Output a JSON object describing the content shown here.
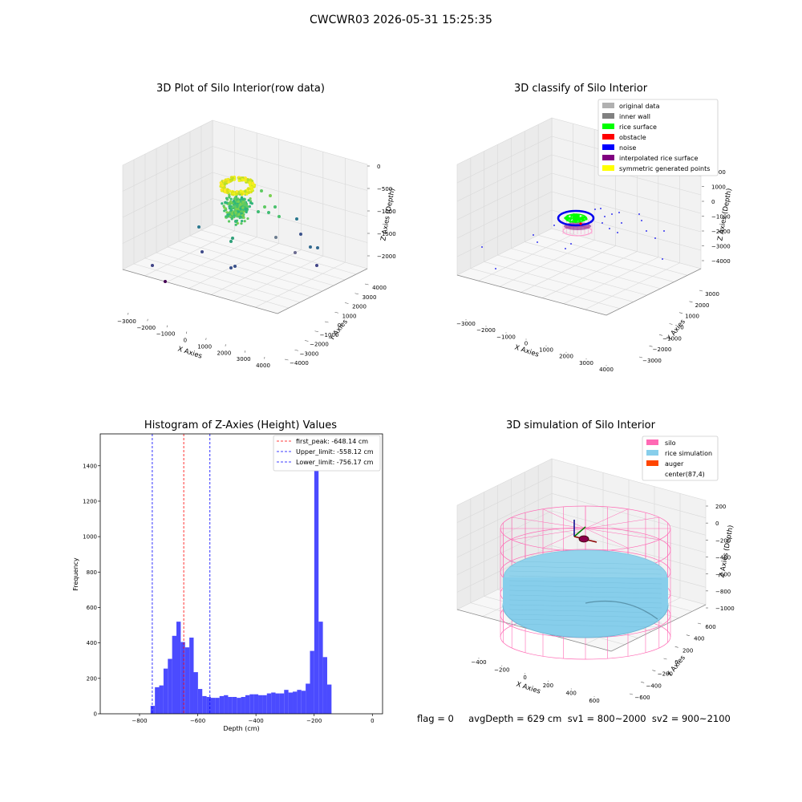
{
  "figure": {
    "suptitle": "CWCWR03 2026-05-31 15:25:35",
    "footer": "flag = 0     avgDepth = 629 cm  sv1 = 800~2000  sv2 = 900~2100"
  },
  "colors": {
    "grid": "#d8d8d8",
    "pane": "#f2f2f2",
    "hist_bar": "#4b4bff",
    "silo": "#ff69b4",
    "rice": "#87ceeb",
    "auger": "#ff4500",
    "noise": "#0000ee",
    "rice_surface": "#00ff00",
    "obstacle": "#ff0000",
    "purple": "#800080",
    "yellow": "#ffff00"
  },
  "chart_data": [
    {
      "type": "scatter",
      "title": "3D Plot of Silo Interior(row data)",
      "xlabel": "X Axies",
      "ylabel": "Y Axies",
      "zlabel": "Z Axies (Depth)",
      "x_ticks": [
        "−3000",
        "−2000",
        "−1000",
        "0",
        "1000",
        "2000",
        "3000",
        "4000"
      ],
      "y_ticks": [
        "−4000",
        "−3000",
        "−2000",
        "−1000",
        "0",
        "1000",
        "2000",
        "3000",
        "4000"
      ],
      "z_ticks": [
        "−2000",
        "−1500",
        "−1000",
        "−500",
        "0"
      ],
      "colormap": "viridis"
    },
    {
      "type": "scatter",
      "title": "3D classify of Silo Interior",
      "xlabel": "X Axies",
      "ylabel": "Y Axies",
      "zlabel": "Z Axies (Depth)",
      "x_ticks": [
        "−3000",
        "−2000",
        "−1000",
        "0",
        "1000",
        "2000",
        "3000",
        "4000"
      ],
      "y_ticks": [
        "−3000",
        "−2000",
        "−1000",
        "0",
        "1000",
        "2000",
        "3000"
      ],
      "z_ticks": [
        "−4000",
        "−3000",
        "−2000",
        "−1000",
        "0",
        "1000",
        "2000"
      ],
      "legend": [
        {
          "label": "original data",
          "color": "#b0b0b0"
        },
        {
          "label": "inner wall",
          "color": "#808080"
        },
        {
          "label": "rice surface",
          "color": "#00ff00"
        },
        {
          "label": "obstacle",
          "color": "#ff0000"
        },
        {
          "label": "noise",
          "color": "#0000ff"
        },
        {
          "label": "interpolated rice surface",
          "color": "#800080"
        },
        {
          "label": "symmetric generated points",
          "color": "#ffff00"
        }
      ]
    },
    {
      "type": "bar",
      "title": "Histogram of Z-Axies (Height) Values",
      "xlabel": "Depth (cm)",
      "ylabel": "Frequency",
      "xlim": [
        -935,
        35
      ],
      "ylim": [
        0,
        1580
      ],
      "x_ticks": [
        -800,
        -600,
        -400,
        -200,
        0
      ],
      "y_ticks": [
        0,
        200,
        400,
        600,
        800,
        1000,
        1200,
        1400
      ],
      "bin_start": -762,
      "bin_width": 14.8,
      "values": [
        45,
        150,
        160,
        255,
        310,
        440,
        520,
        405,
        375,
        430,
        235,
        140,
        100,
        95,
        90,
        90,
        100,
        105,
        95,
        95,
        90,
        95,
        105,
        110,
        110,
        105,
        105,
        115,
        120,
        115,
        115,
        135,
        120,
        125,
        135,
        130,
        170,
        355,
        1510,
        520,
        320,
        165
      ],
      "vlines": [
        {
          "x": -648.14,
          "label": "first_peak: -648.14 cm",
          "color": "#ff0000"
        },
        {
          "x": -558.12,
          "label": "Upper_limit: -558.12 cm",
          "color": "#0000ff"
        },
        {
          "x": -756.17,
          "label": "Lower_limit: -756.17 cm",
          "color": "#0000ff"
        }
      ]
    },
    {
      "type": "surface",
      "title": "3D simulation of Silo Interior",
      "xlabel": "X Axies",
      "ylabel": "Y Axies",
      "zlabel": "Z Axies (Depth)",
      "x_ticks": [
        "−400",
        "−200",
        "0",
        "200",
        "400",
        "600"
      ],
      "y_ticks": [
        "−600",
        "−400",
        "−200",
        "0",
        "200",
        "400",
        "600"
      ],
      "z_ticks": [
        "−1000",
        "−800",
        "−600",
        "−400",
        "−200",
        "0",
        "200"
      ],
      "legend": [
        {
          "label": "silo",
          "color": "#ff69b4"
        },
        {
          "label": "rice simulation",
          "color": "#87ceeb"
        },
        {
          "label": "auger",
          "color": "#ff4500"
        },
        {
          "label": "center(87,4)",
          "color": ""
        }
      ]
    }
  ]
}
